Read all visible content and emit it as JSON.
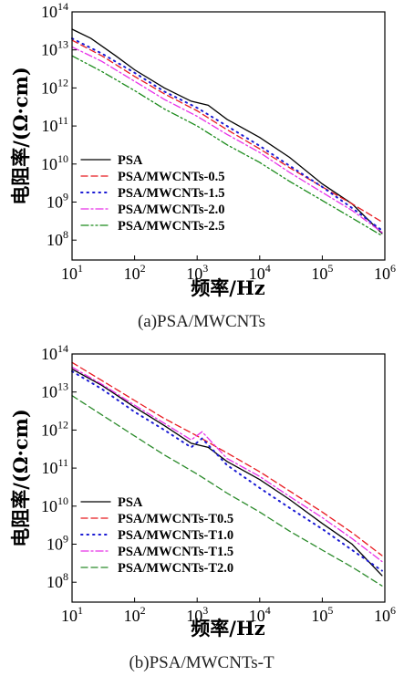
{
  "chart_data": [
    {
      "type": "line",
      "panel": "a",
      "caption": "(a)PSA/MWCNTs",
      "xlabel": "频率/Hz",
      "ylabel": "电阻率/(Ω·cm)",
      "xscale": "log",
      "yscale": "log",
      "xlim": [
        10,
        1000000
      ],
      "ylim": [
        30000000,
        100000000000000
      ],
      "x_ticks": [
        {
          "base": "10",
          "exp": "1"
        },
        {
          "base": "10",
          "exp": "2"
        },
        {
          "base": "10",
          "exp": "3"
        },
        {
          "base": "10",
          "exp": "4"
        },
        {
          "base": "10",
          "exp": "5"
        },
        {
          "base": "10",
          "exp": "6"
        }
      ],
      "y_ticks": [
        {
          "base": "10",
          "exp": "8"
        },
        {
          "base": "10",
          "exp": "9"
        },
        {
          "base": "10",
          "exp": "10"
        },
        {
          "base": "10",
          "exp": "11"
        },
        {
          "base": "10",
          "exp": "12"
        },
        {
          "base": "10",
          "exp": "13"
        },
        {
          "base": "10",
          "exp": "14"
        }
      ],
      "legend_position": "bottom-left",
      "series": [
        {
          "name": "PSA",
          "color": "#000000",
          "style": "solid",
          "points": [
            [
              10,
              35000000000000
            ],
            [
              20,
              20000000000000
            ],
            [
              50,
              7000000000000
            ],
            [
              100,
              3000000000000
            ],
            [
              300,
              1000000000000
            ],
            [
              800,
              450000000000
            ],
            [
              1500,
              350000000000
            ],
            [
              3000,
              150000000000
            ],
            [
              10000,
              50000000000
            ],
            [
              30000,
              15000000000
            ],
            [
              100000,
              3000000000
            ],
            [
              300000,
              900000000
            ],
            [
              900000,
              150000000
            ]
          ]
        },
        {
          "name": "PSA/MWCNTs-0.5",
          "color": "#e8191f",
          "style": "dash",
          "points": [
            [
              10,
              18000000000000
            ],
            [
              30,
              7000000000000
            ],
            [
              100,
              2000000000000
            ],
            [
              300,
              700000000000
            ],
            [
              1000,
              250000000000
            ],
            [
              3000,
              80000000000
            ],
            [
              10000,
              25000000000
            ],
            [
              30000,
              8000000000
            ],
            [
              100000,
              2500000000
            ],
            [
              300000,
              900000000
            ],
            [
              900000,
              300000000
            ]
          ]
        },
        {
          "name": "PSA/MWCNTs-1.5",
          "color": "#1a1ad4",
          "style": "dot",
          "points": [
            [
              10,
              20000000000000
            ],
            [
              30,
              8000000000000
            ],
            [
              100,
              2500000000000
            ],
            [
              300,
              800000000000
            ],
            [
              1000,
              300000000000
            ],
            [
              3000,
              100000000000
            ],
            [
              10000,
              30000000000
            ],
            [
              30000,
              9000000000
            ],
            [
              100000,
              2500000000
            ],
            [
              300000,
              700000000
            ],
            [
              900000,
              180000000
            ]
          ]
        },
        {
          "name": "PSA/MWCNTs-2.0",
          "color": "#e830e8",
          "style": "dashdot",
          "points": [
            [
              10,
              12000000000000
            ],
            [
              30,
              5000000000000
            ],
            [
              100,
              1500000000000
            ],
            [
              300,
              500000000000
            ],
            [
              1000,
              180000000000
            ],
            [
              3000,
              60000000000
            ],
            [
              10000,
              20000000000
            ],
            [
              30000,
              6000000000
            ],
            [
              100000,
              1800000000
            ],
            [
              300000,
              600000000
            ],
            [
              900000,
              160000000
            ]
          ]
        },
        {
          "name": "PSA/MWCNTs-2.5",
          "color": "#1a8a1a",
          "style": "dashdotdot",
          "points": [
            [
              10,
              7000000000000
            ],
            [
              30,
              2700000000000
            ],
            [
              100,
              850000000000
            ],
            [
              300,
              280000000000
            ],
            [
              1000,
              100000000000
            ],
            [
              3000,
              32000000000
            ],
            [
              10000,
              11000000000
            ],
            [
              30000,
              3500000000
            ],
            [
              100000,
              1100000000
            ],
            [
              300000,
              380000000
            ],
            [
              900000,
              130000000
            ]
          ]
        }
      ]
    },
    {
      "type": "line",
      "panel": "b",
      "caption": "(b)PSA/MWCNTs-T",
      "xlabel": "频率/Hz",
      "ylabel": "电阻率/(Ω·cm)",
      "xscale": "log",
      "yscale": "log",
      "xlim": [
        10,
        1000000
      ],
      "ylim": [
        30000000,
        100000000000000
      ],
      "x_ticks": [
        {
          "base": "10",
          "exp": "1"
        },
        {
          "base": "10",
          "exp": "2"
        },
        {
          "base": "10",
          "exp": "3"
        },
        {
          "base": "10",
          "exp": "4"
        },
        {
          "base": "10",
          "exp": "5"
        },
        {
          "base": "10",
          "exp": "6"
        }
      ],
      "y_ticks": [
        {
          "base": "10",
          "exp": "8"
        },
        {
          "base": "10",
          "exp": "9"
        },
        {
          "base": "10",
          "exp": "10"
        },
        {
          "base": "10",
          "exp": "11"
        },
        {
          "base": "10",
          "exp": "12"
        },
        {
          "base": "10",
          "exp": "13"
        },
        {
          "base": "10",
          "exp": "14"
        }
      ],
      "legend_position": "bottom-left",
      "series": [
        {
          "name": "PSA",
          "color": "#000000",
          "style": "solid",
          "points": [
            [
              10,
              40000000000000
            ],
            [
              30,
              15000000000000
            ],
            [
              100,
              4000000000000
            ],
            [
              300,
              1300000000000
            ],
            [
              800,
              450000000000
            ],
            [
              1500,
              350000000000
            ],
            [
              3000,
              150000000000
            ],
            [
              10000,
              50000000000
            ],
            [
              30000,
              15000000000
            ],
            [
              100000,
              3500000000
            ],
            [
              300000,
              1000000000
            ],
            [
              900000,
              150000000
            ]
          ]
        },
        {
          "name": "PSA/MWCNTs-T0.5",
          "color": "#e8191f",
          "style": "dash",
          "points": [
            [
              10,
              60000000000000
            ],
            [
              30,
              20000000000000
            ],
            [
              100,
              6000000000000
            ],
            [
              300,
              2000000000000
            ],
            [
              1000,
              700000000000
            ],
            [
              3000,
              250000000000
            ],
            [
              10000,
              80000000000
            ],
            [
              30000,
              25000000000
            ],
            [
              100000,
              7000000000
            ],
            [
              300000,
              2000000000
            ],
            [
              900000,
              500000000
            ]
          ]
        },
        {
          "name": "PSA/MWCNTs-T1.0",
          "color": "#1a1ad4",
          "style": "dot",
          "points": [
            [
              10,
              35000000000000
            ],
            [
              30,
              12000000000000
            ],
            [
              100,
              3000000000000
            ],
            [
              300,
              1000000000000
            ],
            [
              800,
              350000000000
            ],
            [
              1200,
              600000000000
            ],
            [
              3000,
              120000000000
            ],
            [
              10000,
              30000000000
            ],
            [
              30000,
              9000000000
            ],
            [
              100000,
              2500000000
            ],
            [
              300000,
              700000000
            ],
            [
              900000,
              200000000
            ]
          ]
        },
        {
          "name": "PSA/MWCNTs-T1.5",
          "color": "#e830e8",
          "style": "dashdot",
          "points": [
            [
              10,
              45000000000000
            ],
            [
              30,
              16000000000000
            ],
            [
              100,
              4500000000000
            ],
            [
              300,
              1500000000000
            ],
            [
              800,
              550000000000
            ],
            [
              1200,
              900000000000
            ],
            [
              3000,
              180000000000
            ],
            [
              10000,
              60000000000
            ],
            [
              30000,
              18000000000
            ],
            [
              100000,
              5000000000
            ],
            [
              300000,
              1400000000
            ],
            [
              900000,
              350000000
            ]
          ]
        },
        {
          "name": "PSA/MWCNTs-T2.0",
          "color": "#2a8a2a",
          "style": "dash",
          "points": [
            [
              10,
              8000000000000
            ],
            [
              30,
              2500000000000
            ],
            [
              100,
              700000000000
            ],
            [
              300,
              220000000000
            ],
            [
              1000,
              70000000000
            ],
            [
              3000,
              22000000000
            ],
            [
              10000,
              7000000000
            ],
            [
              30000,
              2200000000
            ],
            [
              100000,
              700000000
            ],
            [
              300000,
              250000000
            ],
            [
              900000,
              80000000
            ]
          ]
        }
      ]
    }
  ]
}
